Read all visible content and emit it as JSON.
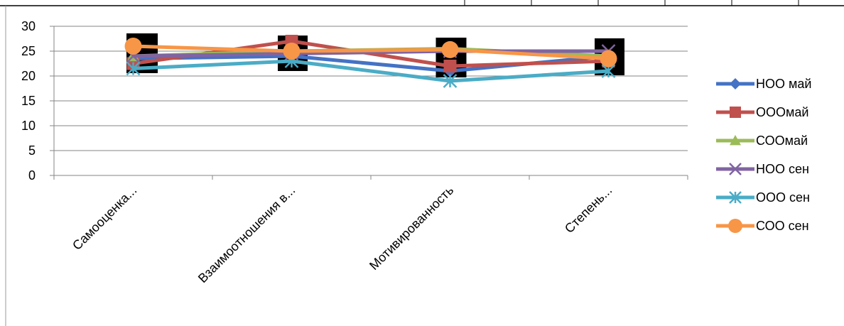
{
  "chart_data": {
    "type": "line",
    "categories": [
      "Самооценка...",
      "Взаимоотношения в...",
      "Мотивированность",
      "Степень..."
    ],
    "ylim": [
      0,
      30
    ],
    "yticks": [
      0,
      5,
      10,
      15,
      20,
      25,
      30
    ],
    "grid": true,
    "legend_position": "right",
    "series": [
      {
        "name": "НОО май",
        "color": "#4472C4",
        "marker": "diamond",
        "values": [
          23.5,
          24,
          21,
          24
        ]
      },
      {
        "name": "ОООмай",
        "color": "#C0504D",
        "marker": "square",
        "values": [
          22.5,
          27,
          22,
          23
        ]
      },
      {
        "name": "СООмай",
        "color": "#9BBB59",
        "marker": "triangle",
        "values": [
          24,
          25,
          25.5,
          24
        ]
      },
      {
        "name": "НОО сен",
        "color": "#8064A2",
        "marker": "x",
        "values": [
          24,
          24.5,
          25,
          25
        ]
      },
      {
        "name": "ООО сен",
        "color": "#4BACC6",
        "marker": "asterisk",
        "values": [
          21.5,
          23,
          19,
          21
        ]
      },
      {
        "name": "СОО сен",
        "color": "#F79646",
        "marker": "circle",
        "values": [
          26,
          25,
          25.3,
          23.5
        ]
      }
    ]
  }
}
